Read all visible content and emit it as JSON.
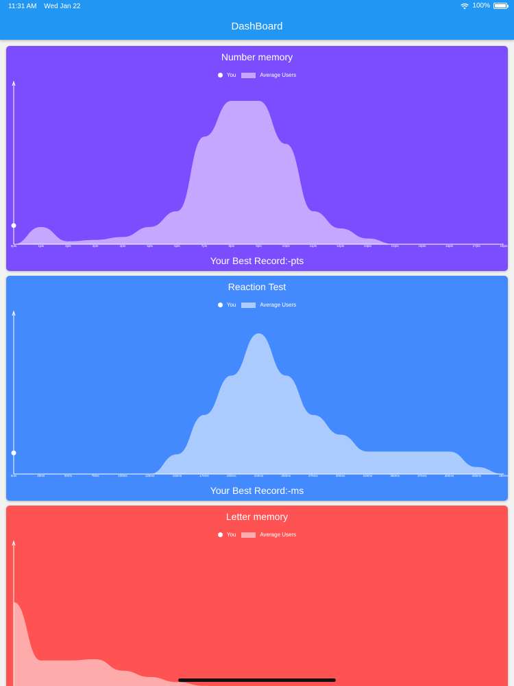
{
  "status": {
    "time": "11:31 AM",
    "date": "Wed Jan 22",
    "battery": "100%"
  },
  "appbar": {
    "title": "DashBoard"
  },
  "legend": {
    "you": "You",
    "avg": "Average Users"
  },
  "cards": [
    {
      "title": "Number memory",
      "bg": "#7c4dff",
      "fill": "#c5a7ff",
      "best": "Your Best Record:-pts",
      "chart_data": {
        "type": "area",
        "title": "Number memory",
        "xlabel": "",
        "ylabel": "",
        "x_tick_labels": [
          "0pts",
          "1pts",
          "2pts",
          "3pts",
          "4pts",
          "5pts",
          "6pts",
          "7pts",
          "8pts",
          "9pts",
          "10pts",
          "11pts",
          "12pts",
          "13pts",
          "14pts",
          "15pts",
          "16pts",
          "17pts",
          "18pts"
        ],
        "xlim": [
          0,
          18
        ],
        "ylim": [
          0,
          100
        ],
        "series": [
          {
            "name": "Average Users",
            "x": [
              0,
              1,
              2,
              3,
              4,
              5,
              6,
              7,
              8,
              9,
              10,
              11,
              12,
              13,
              14,
              15,
              16,
              17,
              18
            ],
            "y": [
              0,
              12,
              2,
              3,
              5,
              12,
              23,
              75,
              100,
              100,
              70,
              23,
              11,
              4,
              0,
              0,
              0,
              0,
              0
            ]
          },
          {
            "name": "You",
            "x": [
              0
            ],
            "y": [
              13
            ]
          }
        ]
      }
    },
    {
      "title": "Reaction Test",
      "bg": "#448aff",
      "fill": "#abcbff",
      "best": "Your Best Record:-ms",
      "chart_data": {
        "type": "area",
        "title": "Reaction Test",
        "xlabel": "",
        "ylabel": "",
        "x_tick_labels": [
          "0ms",
          "25ms",
          "50ms",
          "75ms",
          "100ms",
          "125ms",
          "150ms",
          "175ms",
          "200ms",
          "225ms",
          "250ms",
          "275ms",
          "300ms",
          "325ms",
          "350ms",
          "375ms",
          "400ms",
          "425ms",
          "450ms"
        ],
        "xlim": [
          0,
          450
        ],
        "ylim": [
          0,
          100
        ],
        "series": [
          {
            "name": "Average Users",
            "x": [
              0,
              25,
              50,
              75,
              100,
              125,
              150,
              175,
              200,
              225,
              250,
              275,
              300,
              325,
              350,
              375,
              400,
              425,
              450
            ],
            "y": [
              0,
              0,
              0,
              0,
              0,
              0,
              14,
              42,
              70,
              100,
              70,
              42,
              28,
              16,
              16,
              16,
              16,
              5,
              0
            ]
          },
          {
            "name": "You",
            "x": [
              0
            ],
            "y": [
              15
            ]
          }
        ]
      }
    },
    {
      "title": "Letter memory",
      "bg": "#ff5252",
      "fill": "#ffabab",
      "chart_data": {
        "type": "area",
        "title": "Letter memory",
        "xlabel": "",
        "ylabel": "",
        "xlim": [
          0,
          18
        ],
        "ylim": [
          0,
          100
        ],
        "series": [
          {
            "name": "Average Users",
            "x": [
              0,
              1,
              2,
              3,
              4,
              5,
              6,
              7,
              8,
              9,
              10,
              11,
              12,
              13,
              14,
              15,
              16,
              17,
              18
            ],
            "y": [
              78,
              32,
              32,
              33,
              24,
              19,
              15,
              12,
              9,
              5,
              2,
              0,
              0,
              0,
              0,
              0,
              0,
              0,
              0
            ]
          },
          {
            "name": "You",
            "x": [
              0
            ],
            "y": [
              0
            ]
          }
        ]
      }
    }
  ]
}
